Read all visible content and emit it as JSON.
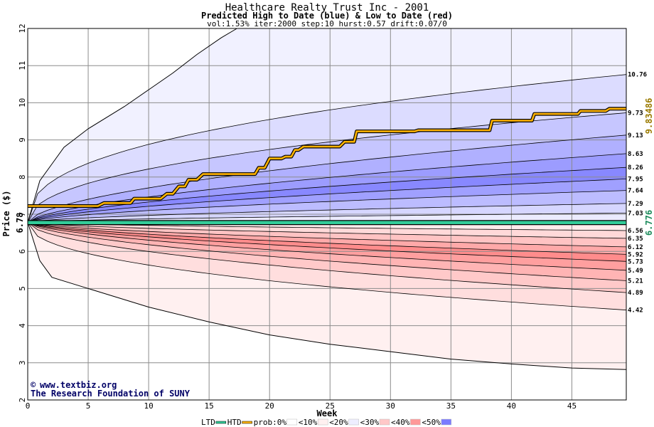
{
  "chart_data": {
    "type": "area",
    "title": "Healthcare Realty Trust Inc - 2001",
    "subtitle": "Predicted High to Date (blue) &  Low to Date (red)",
    "params": "vol:1.53% iter:2000 step:10 hurst:0.57 drift:0.07/0",
    "xlabel": "Week",
    "ylabel": "Price ($)",
    "xlim": [
      0,
      49.5
    ],
    "ylim": [
      2,
      12
    ],
    "x_ticks": [
      0,
      5,
      10,
      15,
      20,
      25,
      30,
      35,
      40,
      45
    ],
    "y_ticks": [
      2,
      3,
      4,
      5,
      6,
      7,
      8,
      9,
      10,
      11,
      12
    ],
    "start_price": 6.78,
    "start_price_label": "6.78",
    "current_price": 6.776,
    "current_price_label": "6.776",
    "high_to_date_label": "9.83486",
    "high_to_date_series": [
      [
        0,
        7.22
      ],
      [
        5.8,
        7.22
      ],
      [
        6.3,
        7.3
      ],
      [
        8.5,
        7.3
      ],
      [
        8.8,
        7.42
      ],
      [
        11,
        7.42
      ],
      [
        11.5,
        7.55
      ],
      [
        12,
        7.55
      ],
      [
        12.5,
        7.75
      ],
      [
        13,
        7.75
      ],
      [
        13.3,
        7.93
      ],
      [
        14,
        7.93
      ],
      [
        14.5,
        8.08
      ],
      [
        18.8,
        8.08
      ],
      [
        19.1,
        8.25
      ],
      [
        19.6,
        8.25
      ],
      [
        20,
        8.5
      ],
      [
        21,
        8.5
      ],
      [
        21.3,
        8.55
      ],
      [
        21.8,
        8.55
      ],
      [
        22.1,
        8.73
      ],
      [
        22.4,
        8.73
      ],
      [
        22.8,
        8.82
      ],
      [
        25.8,
        8.82
      ],
      [
        26.2,
        8.95
      ],
      [
        27,
        8.95
      ],
      [
        27.2,
        9.23
      ],
      [
        32,
        9.23
      ],
      [
        32.3,
        9.26
      ],
      [
        38.2,
        9.26
      ],
      [
        38.4,
        9.52
      ],
      [
        41.7,
        9.52
      ],
      [
        41.9,
        9.7
      ],
      [
        45.5,
        9.7
      ],
      [
        45.7,
        9.78
      ],
      [
        47.8,
        9.78
      ],
      [
        48.1,
        9.84
      ],
      [
        49.5,
        9.84
      ]
    ],
    "upper_bands": [
      {
        "label": "10.76",
        "final": 10.76,
        "k": 0.4,
        "near": 1.0,
        "far": 1.0
      },
      {
        "label": "9.73",
        "final": 9.73,
        "k": 0.45,
        "near": 1.0,
        "far": 1.0
      },
      {
        "label": "9.13",
        "final": 9.13,
        "k": 0.58,
        "near": 1.0,
        "far": 1.0
      },
      {
        "label": "8.63",
        "final": 8.63,
        "k": 0.62,
        "near": 1.0,
        "far": 1.0
      },
      {
        "label": "8.26",
        "final": 8.26,
        "k": 0.62,
        "near": 1.0,
        "far": 1.0
      },
      {
        "label": "7.95",
        "final": 7.95,
        "k": 0.62,
        "near": 1.0,
        "far": 1.0
      },
      {
        "label": "7.64",
        "final": 7.64,
        "k": 0.62,
        "near": 1.0,
        "far": 1.0
      },
      {
        "label": "7.29",
        "final": 7.29,
        "k": 0.62,
        "near": 1.0,
        "far": 1.0
      },
      {
        "label": "7.03",
        "final": 7.03,
        "k": 0.62,
        "near": 1.0,
        "far": 1.0
      }
    ],
    "upper_outer_curve": [
      [
        0,
        6.78
      ],
      [
        1,
        7.9
      ],
      [
        2,
        8.35
      ],
      [
        3,
        8.8
      ],
      [
        5,
        9.3
      ],
      [
        8,
        9.9
      ],
      [
        10,
        10.35
      ],
      [
        12,
        10.8
      ],
      [
        14,
        11.3
      ],
      [
        16,
        11.75
      ],
      [
        17.3,
        12.0
      ]
    ],
    "lower_bands": [
      {
        "label": "6.56",
        "final": 6.56,
        "k": 0.62
      },
      {
        "label": "6.35",
        "final": 6.35,
        "k": 0.62
      },
      {
        "label": "6.12",
        "final": 6.12,
        "k": 0.62
      },
      {
        "label": "5.92",
        "final": 5.92,
        "k": 0.62
      },
      {
        "label": "5.73",
        "final": 5.73,
        "k": 0.62
      },
      {
        "label": "5.49",
        "final": 5.49,
        "k": 0.62
      },
      {
        "label": "5.21",
        "final": 5.21,
        "k": 0.6
      },
      {
        "label": "4.89",
        "final": 4.89,
        "k": 0.55
      },
      {
        "label": "4.42",
        "final": 4.42,
        "k": 0.45
      }
    ],
    "lower_outer_curve": [
      [
        0,
        6.78
      ],
      [
        1,
        5.75
      ],
      [
        2,
        5.3
      ],
      [
        4,
        5.1
      ],
      [
        6,
        4.9
      ],
      [
        10,
        4.5
      ],
      [
        15,
        4.1
      ],
      [
        20,
        3.75
      ],
      [
        25,
        3.5
      ],
      [
        30,
        3.3
      ],
      [
        35,
        3.1
      ],
      [
        40,
        2.97
      ],
      [
        45,
        2.86
      ],
      [
        49.5,
        2.82
      ]
    ],
    "grid": true,
    "legend": {
      "position": "bottom",
      "items": [
        {
          "label": "LTD",
          "color": "#33cc99",
          "kind": "line"
        },
        {
          "label": "HTD",
          "color": "#ffb300",
          "kind": "line"
        },
        {
          "label": "prob:0%",
          "color": "#ffffff",
          "kind": "swatch"
        },
        {
          "label": "<10%",
          "color": "#fff0f0",
          "kind": "swatch"
        },
        {
          "label": "<20%",
          "color": "#eeeeff",
          "kind": "swatch"
        },
        {
          "label": "<30%",
          "color": "#ffc8c8",
          "kind": "swatch"
        },
        {
          "label": "<40%",
          "color": "#ff9999",
          "kind": "swatch"
        },
        {
          "label": "<50%",
          "color": "#7b7bff",
          "kind": "swatch"
        }
      ]
    }
  },
  "credit": {
    "url": "www.textbiz.org",
    "copyright_symbol": "©",
    "org": "The Research Foundation of SUNY"
  },
  "colors": {
    "blue_bands": [
      "#f1f1ff",
      "#dcdcff",
      "#c6c6ff",
      "#b0b0ff",
      "#9c9cff",
      "#8888ff",
      "#a0a0ff",
      "#bcbcff",
      "#d6d6ff",
      "#ebebff"
    ],
    "red_bands": [
      "#fff0f0",
      "#ffdede",
      "#ffc9c9",
      "#ffb4b4",
      "#ff9f9f",
      "#ff8c8c",
      "#ffa9a9",
      "#ffc3c3",
      "#ffd9d9",
      "#ffecec"
    ],
    "htd": "#ffb300",
    "ltd": "#33cc99",
    "grid": "#8c8c8c",
    "high_label": "#9a7a00",
    "current_label": "#1a8a5a"
  }
}
